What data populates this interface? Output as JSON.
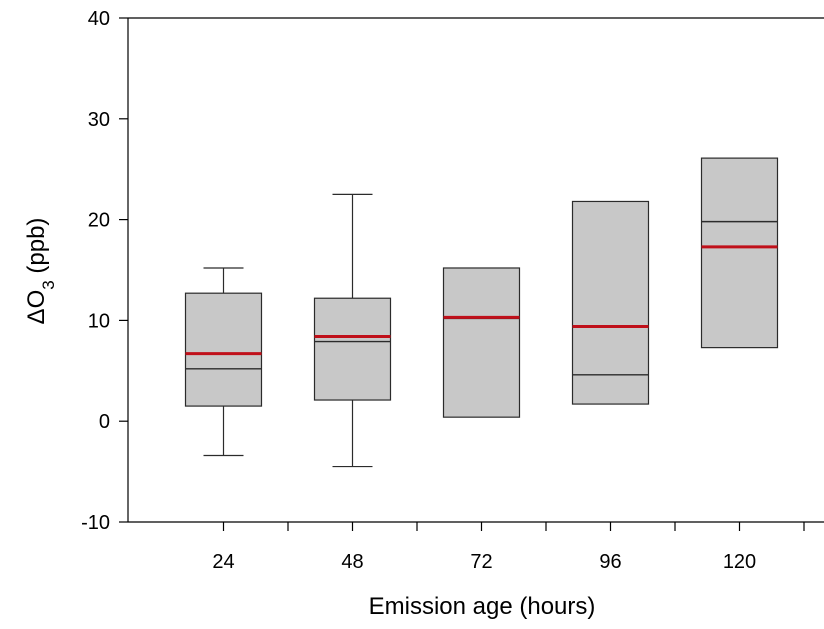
{
  "chart_data": {
    "type": "box",
    "title": "",
    "xlabel": "Emission age (hours)",
    "ylabel": {
      "prefix": "ΔO",
      "subscript": "3",
      "suffix": " (ppb)"
    },
    "ylim": [
      -10,
      40
    ],
    "yticks": [
      -10,
      0,
      10,
      20,
      30,
      40
    ],
    "categories": [
      "24",
      "48",
      "72",
      "96",
      "120"
    ],
    "boxes": [
      {
        "category": "24",
        "whisker_low": -3.4,
        "q1": 1.5,
        "median": 5.2,
        "mean": 6.7,
        "q3": 12.7,
        "whisker_high": 15.2
      },
      {
        "category": "48",
        "whisker_low": -4.5,
        "q1": 2.1,
        "median": 7.9,
        "mean": 8.4,
        "q3": 12.2,
        "whisker_high": 22.5
      },
      {
        "category": "72",
        "whisker_low": null,
        "q1": 0.4,
        "median": 10.2,
        "mean": 10.3,
        "q3": 15.2,
        "whisker_high": null
      },
      {
        "category": "96",
        "whisker_low": null,
        "q1": 1.7,
        "median": 4.6,
        "mean": 9.4,
        "q3": 21.8,
        "whisker_high": null
      },
      {
        "category": "120",
        "whisker_low": null,
        "q1": 7.3,
        "median": 19.8,
        "mean": 17.3,
        "q3": 26.1,
        "whisker_high": null
      }
    ],
    "colors": {
      "box_fill": "#c8c8c8",
      "box_stroke": "#2b2b2b",
      "median": "#2b2b2b",
      "mean": "#c0101a",
      "axis": "#000000"
    },
    "grid": false,
    "legend": "none"
  }
}
